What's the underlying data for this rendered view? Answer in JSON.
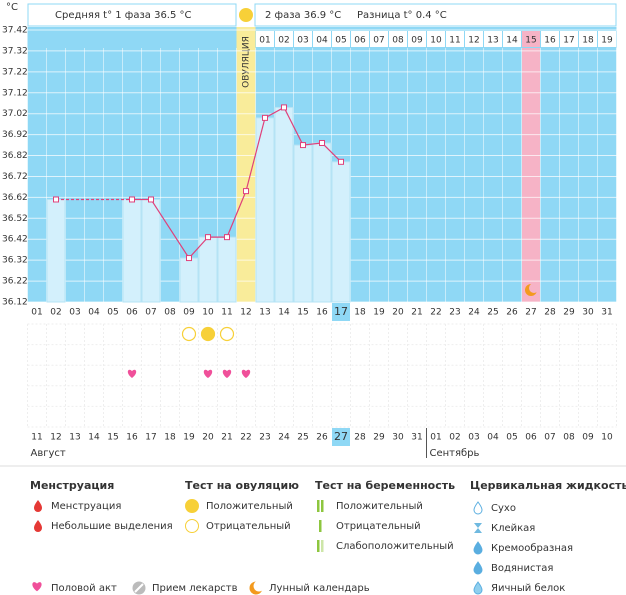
{
  "header": {
    "phase1": "Средняя t° 1 фаза 36.5 °C",
    "phase2": "2 фаза 36.9 °C",
    "diff": "Разница t° 0.4 °C"
  },
  "chart_data": {
    "type": "bbt",
    "y_unit": "°C",
    "ylim": [
      36.12,
      37.42
    ],
    "yticks": [
      37.42,
      37.32,
      37.22,
      37.12,
      37.02,
      36.92,
      36.82,
      36.72,
      36.62,
      36.52,
      36.42,
      36.32,
      36.22,
      36.12
    ],
    "cycle_days": [
      "01",
      "02",
      "03",
      "04",
      "05",
      "06",
      "07",
      "08",
      "09",
      "10",
      "11",
      "12",
      "13",
      "14",
      "15",
      "16",
      "17",
      "18",
      "19",
      "20",
      "21",
      "22",
      "23",
      "24",
      "25",
      "26",
      "27",
      "28",
      "29",
      "30",
      "31"
    ],
    "values": [
      null,
      36.61,
      null,
      null,
      null,
      36.61,
      36.61,
      null,
      36.33,
      36.43,
      36.43,
      36.65,
      37.0,
      37.05,
      36.87,
      36.88,
      36.79,
      null,
      null,
      null,
      null,
      null,
      null,
      null,
      null,
      null,
      null,
      null,
      null,
      null,
      null
    ],
    "color": "#e0407a",
    "ovulation_day": 12,
    "ovulation_label": "ОВУЛЯЦИЯ",
    "post_ovulation_days": [
      "01",
      "02",
      "03",
      "04",
      "05",
      "06",
      "07",
      "08",
      "09",
      "10",
      "11",
      "12",
      "13",
      "14",
      "15",
      "16",
      "17",
      "18",
      "19"
    ],
    "highlight_day": 27,
    "moon_day": 27,
    "today_day": 17,
    "ovulation_tests": [
      {
        "day": 9,
        "result": "negative"
      },
      {
        "day": 10,
        "result": "positive"
      },
      {
        "day": 11,
        "result": "negative"
      }
    ],
    "intercourse_days": [
      6,
      10,
      11,
      12
    ],
    "dates": [
      "11",
      "12",
      "13",
      "14",
      "15",
      "16",
      "17",
      "18",
      "19",
      "20",
      "21",
      "22",
      "23",
      "24",
      "25",
      "26",
      "27",
      "28",
      "29",
      "30",
      "31",
      "01",
      "02",
      "03",
      "04",
      "05",
      "06",
      "07",
      "08",
      "09",
      "10"
    ],
    "weekend_indices": [
      2,
      3,
      9,
      10,
      16,
      17,
      23,
      24,
      30
    ],
    "months": [
      {
        "name": "Август",
        "start": 0
      },
      {
        "name": "Сентябрь",
        "start": 21
      }
    ]
  },
  "legend": {
    "groups": [
      {
        "title": "Менструация",
        "items": [
          "Менструация",
          "Небольшие выделения"
        ]
      },
      {
        "title": "Тест на овуляцию",
        "items": [
          "Положительный",
          "Отрицательный"
        ]
      },
      {
        "title": "Тест на беременность",
        "items": [
          "Положительный",
          "Отрицательный",
          "Слабоположительный"
        ]
      },
      {
        "title": "Цервикальная жидкость",
        "items": [
          "Сухо",
          "Клейкая",
          "Кремообразная",
          "Водянистая",
          "Яичный белок"
        ]
      }
    ],
    "bottom": [
      "Половой акт",
      "Прием лекарств",
      "Лунный календарь"
    ]
  }
}
